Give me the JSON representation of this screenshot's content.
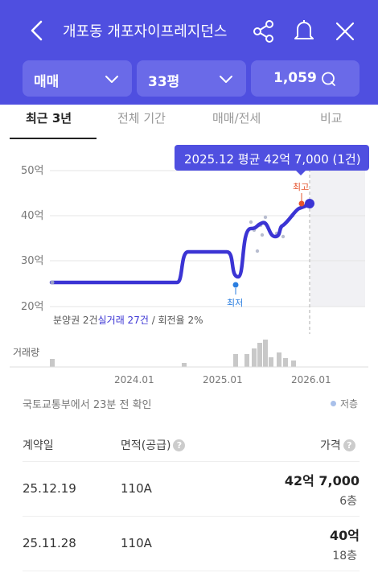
{
  "header": {
    "title": "개포동 개포자이프레지던스",
    "filters": {
      "deal_type": "매매",
      "size": "33평",
      "comments": "1,059"
    }
  },
  "tabs": [
    "최근 3년",
    "전체 기간",
    "매매/전세",
    "비교"
  ],
  "tooltip": "2025.12 평균 42억 7,000 (1건)",
  "chart": {
    "y_ticks": [
      "50억",
      "40억",
      "30억",
      "20억"
    ],
    "x_ticks": [
      "2024.01",
      "2025.01",
      "2026.01"
    ],
    "high_label": "최고",
    "low_label": "최저",
    "stats_prefix": "분양권 2건",
    "stats_highlight": "실거래 27건",
    "stats_suffix": " / 회전율 2%",
    "volume_label": "거래량",
    "line_color": "#3b34d4",
    "high_color": "#e6552f",
    "low_color": "#2a7ee0"
  },
  "chart_data": {
    "type": "line",
    "title": "",
    "xlabel": "",
    "ylabel": "",
    "ylim": [
      20,
      50
    ],
    "x_ticks": [
      "2024.01",
      "2025.01",
      "2026.01"
    ],
    "series": [
      {
        "values": [
          [
            "2023.01",
            25.3
          ],
          [
            "2024.07",
            25.3
          ],
          [
            "2024.09",
            32
          ],
          [
            "2025.01",
            32
          ],
          [
            "2025.03",
            26.5
          ],
          [
            "2025.05",
            37.5
          ],
          [
            "2025.07",
            38.5
          ],
          [
            "2025.09",
            36.5
          ],
          [
            "2025.11",
            40.5
          ],
          [
            "2025.12",
            42.7
          ]
        ]
      }
    ],
    "highest": {
      "x": "2025.12",
      "y": 42.7,
      "label": "최고"
    },
    "lowest": {
      "x": "2025.03",
      "y": 24.7,
      "label": "최저"
    },
    "volume": [
      2,
      1,
      1,
      3,
      3,
      5,
      6,
      2,
      4,
      3,
      2
    ]
  },
  "status": {
    "updated": "국토교통부에서 23분 전 확인",
    "legend_low": "저층"
  },
  "table": {
    "headers": {
      "date": "계약일",
      "area": "면적(공급)",
      "price": "가격"
    },
    "rows": [
      {
        "date": "25.12.19",
        "area": "110A",
        "price": "42억 7,000",
        "floor": "6층"
      },
      {
        "date": "25.11.28",
        "area": "110A",
        "price": "40억",
        "floor": "18층"
      }
    ]
  }
}
